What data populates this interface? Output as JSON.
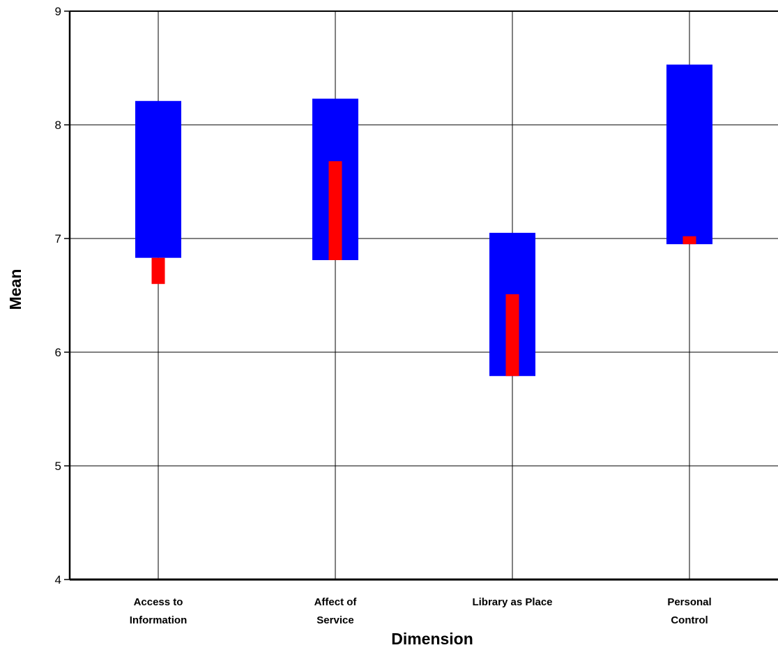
{
  "chart_data": {
    "type": "bar",
    "title": "",
    "xlabel": "Dimension",
    "ylabel": "Mean",
    "ylim": [
      4,
      9
    ],
    "yticks": [
      4,
      5,
      6,
      7,
      8,
      9
    ],
    "grid": true,
    "legend": "none",
    "categories": [
      [
        "Access to",
        "Information"
      ],
      [
        "Affect of",
        "Service"
      ],
      [
        "Library as Place"
      ],
      [
        "Personal",
        "Control"
      ]
    ],
    "series": [
      {
        "color": "#0000ff",
        "low": [
          6.83,
          6.81,
          5.79,
          6.95
        ],
        "high": [
          8.21,
          8.23,
          7.05,
          8.53
        ]
      },
      {
        "color": "#ff0000",
        "low": [
          6.6,
          6.81,
          5.79,
          6.95
        ],
        "high": [
          6.83,
          7.68,
          6.51,
          7.02
        ]
      }
    ]
  }
}
